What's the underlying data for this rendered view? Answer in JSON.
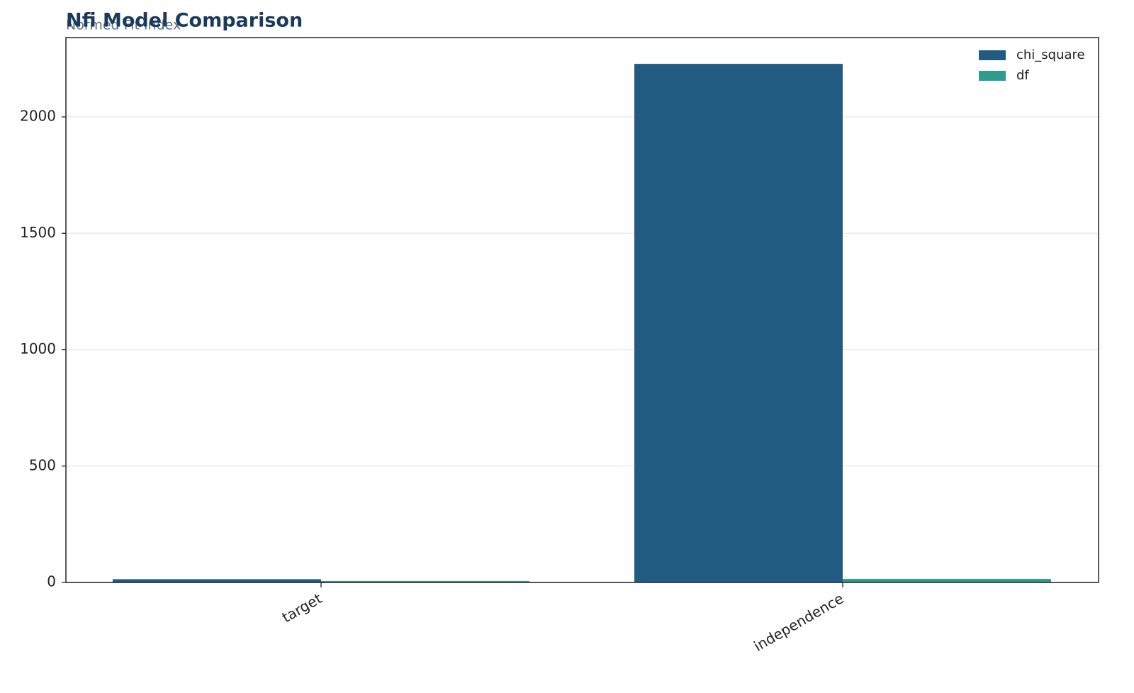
{
  "chart_data": {
    "type": "bar",
    "title": "Nfi Model Comparison",
    "subtitle": "Normed Fit Index",
    "categories": [
      "target",
      "independence"
    ],
    "series": [
      {
        "name": "chi_square",
        "color": "#225b82",
        "values": [
          14,
          2228
        ]
      },
      {
        "name": "df",
        "color": "#2a9d8f",
        "values": [
          6,
          15
        ]
      }
    ],
    "ylim": [
      0,
      2341
    ],
    "yticks": [
      0,
      500,
      1000,
      1500,
      2000
    ],
    "grid": true,
    "legend": "upper right"
  }
}
